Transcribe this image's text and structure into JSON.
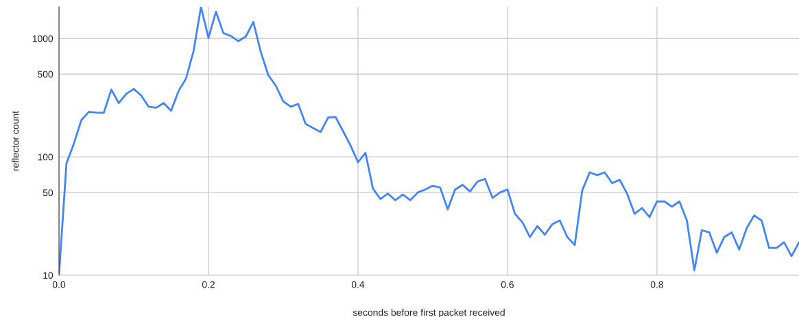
{
  "chart_data": {
    "type": "line",
    "xlabel": "seconds before first packet received",
    "ylabel": "reflector count",
    "log": "y",
    "grid": true,
    "marker": "none",
    "line_style": "solid",
    "xlim": [
      0,
      0.99
    ],
    "xticks": [
      {
        "value": 0,
        "label": "0.0"
      },
      {
        "value": 0.2,
        "label": "0.2"
      },
      {
        "value": 0.4,
        "label": "0.4"
      },
      {
        "value": 0.6,
        "label": "0.6"
      },
      {
        "value": 0.8,
        "label": "0.8"
      }
    ],
    "ylim": [
      10,
      1850
    ],
    "yticks": [
      10,
      50,
      100,
      500,
      1000
    ],
    "x": [
      0.0,
      0.01,
      0.02,
      0.03,
      0.04,
      0.05,
      0.06,
      0.07,
      0.08,
      0.09,
      0.1,
      0.11,
      0.12,
      0.13,
      0.14,
      0.15,
      0.16,
      0.17,
      0.18,
      0.19,
      0.2,
      0.21,
      0.22,
      0.23,
      0.24,
      0.25,
      0.26,
      0.27,
      0.28,
      0.29,
      0.3,
      0.31,
      0.32,
      0.33,
      0.34,
      0.35,
      0.36,
      0.37,
      0.38,
      0.39,
      0.4,
      0.41,
      0.42,
      0.43,
      0.44,
      0.45,
      0.46,
      0.47,
      0.48,
      0.49,
      0.5,
      0.51,
      0.52,
      0.53,
      0.54,
      0.55,
      0.56,
      0.57,
      0.58,
      0.59,
      0.6,
      0.61,
      0.62,
      0.63,
      0.64,
      0.65,
      0.66,
      0.67,
      0.68,
      0.69,
      0.7,
      0.71,
      0.72,
      0.73,
      0.74,
      0.75,
      0.76,
      0.77,
      0.78,
      0.79,
      0.8,
      0.81,
      0.82,
      0.83,
      0.84,
      0.85,
      0.86,
      0.87,
      0.88,
      0.89,
      0.9,
      0.91,
      0.92,
      0.93,
      0.94,
      0.95,
      0.96,
      0.97,
      0.98,
      0.99
    ],
    "series": [
      {
        "color": "#4285f4",
        "values": [
          10,
          88,
          130,
          205,
          240,
          237,
          236,
          370,
          285,
          340,
          375,
          330,
          265,
          260,
          285,
          245,
          360,
          460,
          780,
          1850,
          1010,
          1680,
          1110,
          1050,
          950,
          1040,
          1380,
          770,
          490,
          400,
          295,
          265,
          280,
          190,
          175,
          162,
          215,
          217,
          165,
          125,
          90,
          108,
          54,
          44,
          49,
          43,
          48,
          43,
          50,
          53,
          57,
          55,
          36,
          53,
          58,
          51,
          62,
          65,
          45,
          50,
          53,
          33,
          28,
          21,
          26,
          22,
          27,
          29,
          21,
          18,
          52,
          74,
          70,
          74,
          60,
          64,
          49,
          33,
          37,
          31,
          42,
          42,
          38,
          42,
          29,
          11,
          24,
          23,
          15.5,
          21,
          23,
          16.5,
          25,
          32,
          29,
          17,
          17,
          19,
          14.5,
          19
        ]
      }
    ]
  }
}
